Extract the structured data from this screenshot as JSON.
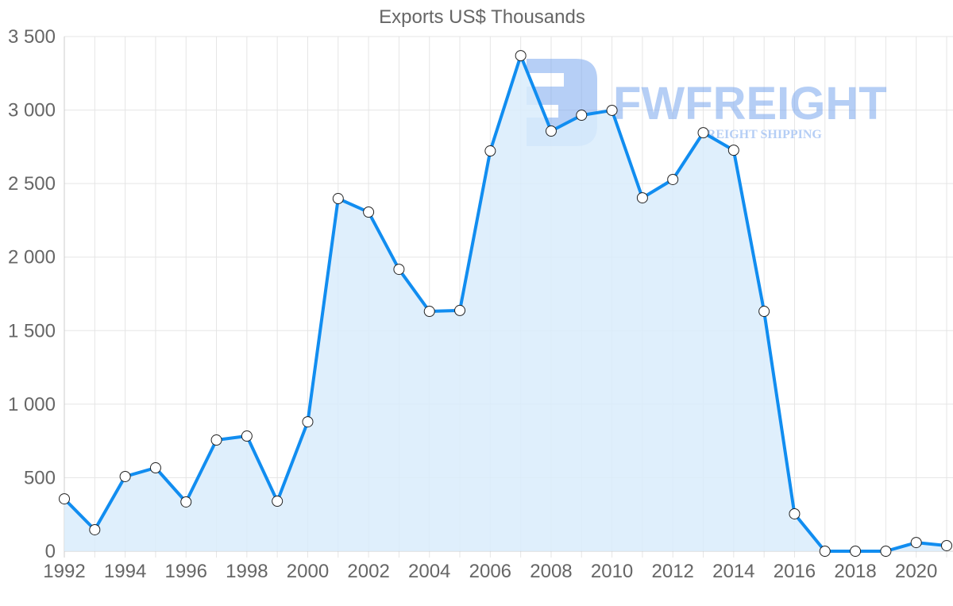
{
  "chart_data": {
    "type": "line",
    "title": "Exports US$ Thousands",
    "xlabel": "",
    "ylabel": "",
    "x": [
      1992,
      1993,
      1994,
      1995,
      1996,
      1997,
      1998,
      1999,
      2000,
      2001,
      2002,
      2003,
      2004,
      2005,
      2006,
      2007,
      2008,
      2009,
      2010,
      2011,
      2012,
      2013,
      2014,
      2015,
      2016,
      2017,
      2018,
      2019,
      2020,
      2021
    ],
    "series": [
      {
        "name": "Exports US$ Thousands",
        "values": [
          356,
          146,
          508,
          567,
          335,
          756,
          783,
          340,
          880,
          2398,
          2306,
          1917,
          1631,
          1637,
          2722,
          3370,
          2857,
          2965,
          2998,
          2403,
          2528,
          2846,
          2727,
          1631,
          254,
          0,
          0,
          0,
          59,
          38
        ],
        "color": "#118DF0",
        "fill": "#D9ECFC"
      }
    ],
    "ylim": [
      0,
      3500
    ],
    "yticks": [
      0,
      500,
      1000,
      1500,
      2000,
      2500,
      3000,
      3500
    ],
    "ytick_labels": [
      "0",
      "500",
      "1 000",
      "1 500",
      "2 000",
      "2 500",
      "3 000",
      "3 500"
    ],
    "xtick_labels": [
      "1992",
      "1994",
      "1996",
      "1998",
      "2000",
      "2002",
      "2004",
      "2006",
      "2008",
      "2010",
      "2012",
      "2014",
      "2016",
      "2018",
      "2020"
    ],
    "grid": true,
    "legend": "none",
    "area_fill": true,
    "point_style": "white circle with dark outline"
  },
  "watermark": {
    "brand": "FWFREIGHT",
    "tagline": "FREIGHT SHIPPING",
    "color": "#7AA7EE"
  }
}
